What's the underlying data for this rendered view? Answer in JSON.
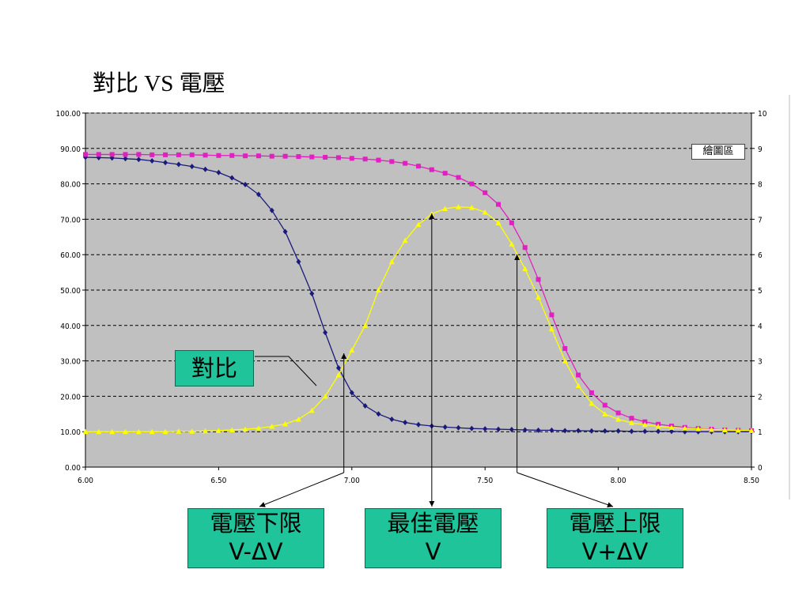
{
  "title": "對比 VS 電壓",
  "plot_area_tag": "繪圖區",
  "series_label": "對比",
  "annotations": {
    "lower": {
      "line1": "電壓下限",
      "line2": "V-ΔV"
    },
    "best": {
      "line1": "最佳電壓",
      "line2": "V"
    },
    "upper": {
      "line1": "電壓上限",
      "line2": "V+ΔV"
    }
  },
  "colors": {
    "plot_bg": "#c0c0c0",
    "navy": "#1a1a7c",
    "magenta": "#e020c0",
    "yellow": "#ffff00",
    "label_bg": "#1fc49a"
  },
  "chart_data": {
    "type": "line",
    "title": "對比 VS 電壓",
    "xlim": [
      6.0,
      8.5
    ],
    "ylim": [
      0,
      100
    ],
    "y2lim": [
      0,
      10
    ],
    "x_ticks": [
      "6.00",
      "6.50",
      "7.00",
      "7.50",
      "8.00",
      "8.50"
    ],
    "y_ticks": [
      "0.00",
      "10.00",
      "20.00",
      "30.00",
      "40.00",
      "50.00",
      "60.00",
      "70.00",
      "80.00",
      "90.00",
      "100.00"
    ],
    "y2_ticks": [
      "0",
      "1",
      "2",
      "3",
      "4",
      "5",
      "6",
      "7",
      "8",
      "9",
      "10"
    ],
    "grid": "horizontal dashed",
    "series": [
      {
        "color": "#1a1a7c",
        "marker": "diamond",
        "axis": "left",
        "x": [
          6.0,
          6.05,
          6.1,
          6.15,
          6.2,
          6.25,
          6.3,
          6.35,
          6.4,
          6.45,
          6.5,
          6.55,
          6.6,
          6.65,
          6.7,
          6.75,
          6.8,
          6.85,
          6.9,
          6.95,
          7.0,
          7.05,
          7.1,
          7.15,
          7.2,
          7.25,
          7.3,
          7.35,
          7.4,
          7.45,
          7.5,
          7.55,
          7.6,
          7.65,
          7.7,
          7.75,
          7.8,
          7.85,
          7.9,
          7.95,
          8.0,
          8.05,
          8.1,
          8.15,
          8.2,
          8.25,
          8.3,
          8.35,
          8.4,
          8.45,
          8.5
        ],
        "y": [
          87.5,
          87.4,
          87.3,
          87.1,
          86.9,
          86.5,
          86.0,
          85.5,
          84.9,
          84.1,
          83.2,
          81.7,
          79.8,
          77.0,
          72.5,
          66.5,
          58.0,
          49.0,
          38.0,
          28.0,
          21.0,
          17.3,
          15.0,
          13.5,
          12.6,
          12.0,
          11.6,
          11.3,
          11.1,
          10.9,
          10.8,
          10.7,
          10.6,
          10.5,
          10.4,
          10.4,
          10.3,
          10.3,
          10.2,
          10.2,
          10.2,
          10.1,
          10.1,
          10.1,
          10.1,
          10.0,
          10.0,
          10.0,
          10.0,
          10.0,
          10.0
        ]
      },
      {
        "color": "#e020c0",
        "marker": "square",
        "axis": "left",
        "x": [
          6.0,
          6.05,
          6.1,
          6.15,
          6.2,
          6.25,
          6.3,
          6.35,
          6.4,
          6.45,
          6.5,
          6.55,
          6.6,
          6.65,
          6.7,
          6.75,
          6.8,
          6.85,
          6.9,
          6.95,
          7.0,
          7.05,
          7.1,
          7.15,
          7.2,
          7.25,
          7.3,
          7.35,
          7.4,
          7.45,
          7.5,
          7.55,
          7.6,
          7.65,
          7.7,
          7.75,
          7.8,
          7.85,
          7.9,
          7.95,
          8.0,
          8.05,
          8.1,
          8.15,
          8.2,
          8.25,
          8.3,
          8.35,
          8.4,
          8.45,
          8.5
        ],
        "y": [
          88.3,
          88.3,
          88.3,
          88.3,
          88.3,
          88.2,
          88.2,
          88.2,
          88.2,
          88.1,
          88.0,
          88.0,
          87.9,
          87.9,
          87.8,
          87.8,
          87.7,
          87.6,
          87.5,
          87.4,
          87.2,
          87.0,
          86.7,
          86.3,
          85.8,
          85.0,
          84.0,
          83.0,
          81.8,
          80.0,
          77.5,
          74.2,
          69.0,
          62.0,
          53.0,
          43.0,
          33.5,
          26.0,
          21.0,
          17.5,
          15.3,
          13.8,
          12.8,
          12.1,
          11.6,
          11.2,
          10.9,
          10.7,
          10.5,
          10.4,
          10.3
        ]
      },
      {
        "color": "#ffff00",
        "marker": "triangle",
        "axis": "right",
        "x": [
          6.0,
          6.05,
          6.1,
          6.15,
          6.2,
          6.25,
          6.3,
          6.35,
          6.4,
          6.45,
          6.5,
          6.55,
          6.6,
          6.65,
          6.7,
          6.75,
          6.8,
          6.85,
          6.9,
          6.95,
          7.0,
          7.05,
          7.1,
          7.15,
          7.2,
          7.25,
          7.3,
          7.35,
          7.4,
          7.45,
          7.5,
          7.55,
          7.6,
          7.65,
          7.7,
          7.75,
          7.8,
          7.85,
          7.9,
          7.95,
          8.0,
          8.05,
          8.1,
          8.15,
          8.2,
          8.25,
          8.3,
          8.35,
          8.4,
          8.45,
          8.5
        ],
        "y": [
          1.0,
          1.0,
          1.0,
          1.0,
          1.0,
          1.0,
          1.0,
          1.01,
          1.01,
          1.02,
          1.03,
          1.05,
          1.07,
          1.1,
          1.15,
          1.22,
          1.35,
          1.6,
          2.0,
          2.6,
          3.3,
          4.0,
          5.0,
          5.8,
          6.4,
          6.85,
          7.15,
          7.3,
          7.35,
          7.33,
          7.2,
          6.9,
          6.3,
          5.6,
          4.8,
          3.9,
          3.0,
          2.3,
          1.8,
          1.5,
          1.35,
          1.25,
          1.2,
          1.15,
          1.12,
          1.1,
          1.08,
          1.06,
          1.05,
          1.04,
          1.03
        ]
      }
    ],
    "markers_at": {
      "lower": 6.97,
      "best": 7.3,
      "upper": 7.62
    }
  }
}
